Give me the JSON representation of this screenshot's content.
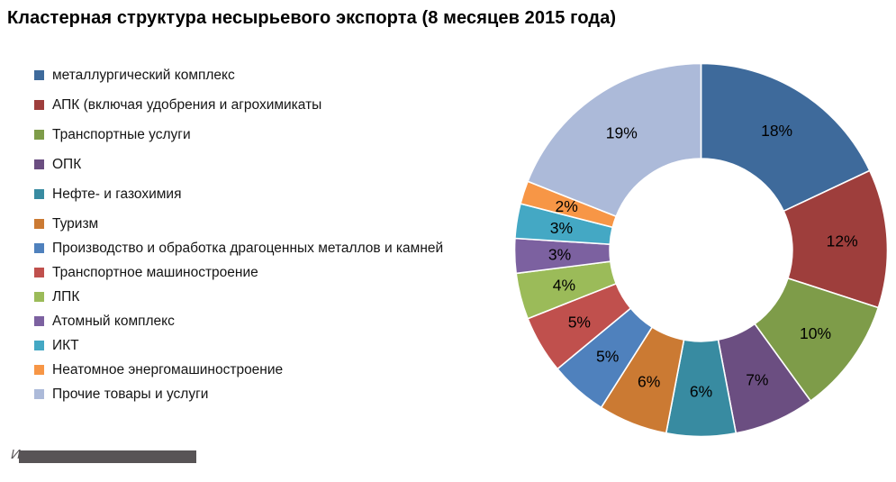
{
  "title": "Кластерная структура несырьевого экспорта (8 месяцев 2015 года)",
  "source": {
    "prefix": "И"
  },
  "chart_data": {
    "type": "pie",
    "subtype": "donut",
    "title": "Кластерная структура несырьевого экспорта (8 месяцев 2015 года)",
    "units": "percent",
    "label_format": "{value}%",
    "start_angle_deg": 0,
    "direction": "clockwise",
    "inner_radius_ratio": 0.49,
    "legend_position": "left",
    "series": [
      {
        "label": "металлургический комплекс",
        "value": 18,
        "color": "#3E6A9B"
      },
      {
        "label": "АПК (включая удобрения и агрохимикаты",
        "value": 12,
        "color": "#9E3E3C"
      },
      {
        "label": "Транспортные услуги",
        "value": 10,
        "color": "#7E9C49"
      },
      {
        "label": "ОПК",
        "value": 7,
        "color": "#6B4E81"
      },
      {
        "label": "Нефте- и газохимия",
        "value": 6,
        "color": "#388BA1"
      },
      {
        "label": "Туризм",
        "value": 6,
        "color": "#CB7A33"
      },
      {
        "label": "Производство и обработка драгоценных металлов и камней",
        "value": 5,
        "color": "#4F81BD"
      },
      {
        "label": "Транспортное машиностроение",
        "value": 5,
        "color": "#C0504D"
      },
      {
        "label": "ЛПК",
        "value": 4,
        "color": "#9BBB59"
      },
      {
        "label": "Атомный комплекс",
        "value": 3,
        "color": "#7C61A0"
      },
      {
        "label": "ИКТ",
        "value": 3,
        "color": "#44A8C4"
      },
      {
        "label": "Неатомное энергомашиностроение",
        "value": 2,
        "color": "#F79646"
      },
      {
        "label": "Прочие товары и услуги",
        "value": 19,
        "color": "#ACBAD9"
      }
    ]
  }
}
